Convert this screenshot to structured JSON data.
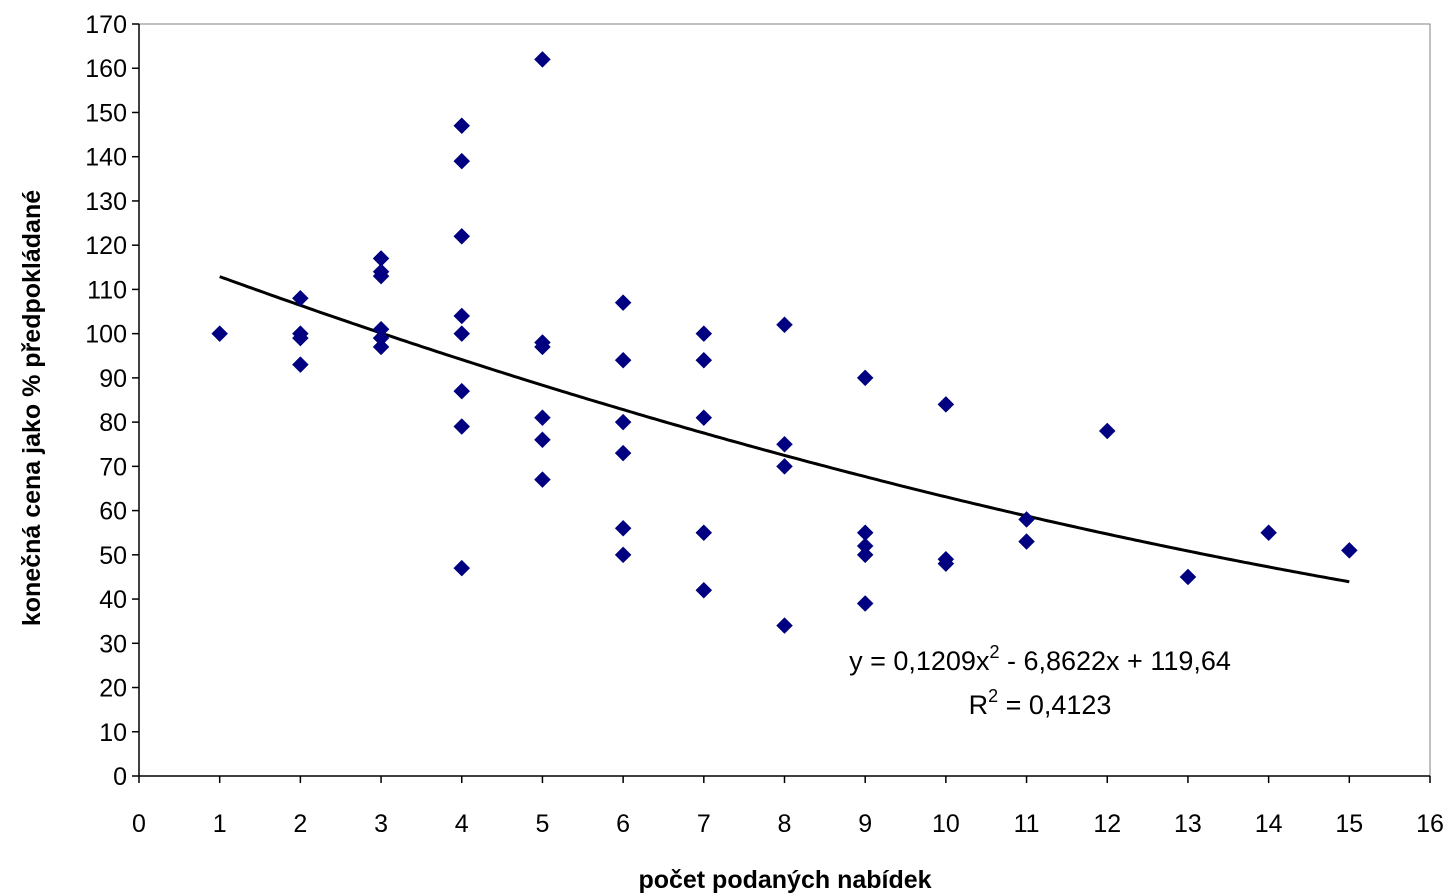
{
  "chart_data": {
    "type": "scatter",
    "title": "",
    "xlabel": "počet podaných nabídek",
    "ylabel": "konečná cena jako % předpokládané",
    "xlim": [
      0,
      16
    ],
    "ylim": [
      0,
      170
    ],
    "x_ticks": [
      "0",
      "1",
      "2",
      "3",
      "4",
      "5",
      "6",
      "7",
      "8",
      "9",
      "10",
      "11",
      "12",
      "13",
      "14",
      "15",
      "16"
    ],
    "y_ticks": [
      "0",
      "10",
      "20",
      "30",
      "40",
      "50",
      "60",
      "70",
      "80",
      "90",
      "100",
      "110",
      "120",
      "130",
      "140",
      "150",
      "160",
      "170"
    ],
    "grid": false,
    "legend": "none",
    "marker_color": "#000080",
    "trendline_color": "#000000",
    "points": [
      {
        "x": 1,
        "y": 100
      },
      {
        "x": 2,
        "y": 108
      },
      {
        "x": 2,
        "y": 100
      },
      {
        "x": 2,
        "y": 99
      },
      {
        "x": 2,
        "y": 93
      },
      {
        "x": 3,
        "y": 117
      },
      {
        "x": 3,
        "y": 114
      },
      {
        "x": 3,
        "y": 113
      },
      {
        "x": 3,
        "y": 101
      },
      {
        "x": 3,
        "y": 99
      },
      {
        "x": 3,
        "y": 97
      },
      {
        "x": 4,
        "y": 147
      },
      {
        "x": 4,
        "y": 139
      },
      {
        "x": 4,
        "y": 122
      },
      {
        "x": 4,
        "y": 104
      },
      {
        "x": 4,
        "y": 100
      },
      {
        "x": 4,
        "y": 87
      },
      {
        "x": 4,
        "y": 79
      },
      {
        "x": 4,
        "y": 47
      },
      {
        "x": 5,
        "y": 162
      },
      {
        "x": 5,
        "y": 98
      },
      {
        "x": 5,
        "y": 97
      },
      {
        "x": 5,
        "y": 81
      },
      {
        "x": 5,
        "y": 76
      },
      {
        "x": 5,
        "y": 67
      },
      {
        "x": 6,
        "y": 107
      },
      {
        "x": 6,
        "y": 94
      },
      {
        "x": 6,
        "y": 80
      },
      {
        "x": 6,
        "y": 73
      },
      {
        "x": 6,
        "y": 56
      },
      {
        "x": 6,
        "y": 50
      },
      {
        "x": 7,
        "y": 100
      },
      {
        "x": 7,
        "y": 94
      },
      {
        "x": 7,
        "y": 81
      },
      {
        "x": 7,
        "y": 55
      },
      {
        "x": 7,
        "y": 42
      },
      {
        "x": 8,
        "y": 102
      },
      {
        "x": 8,
        "y": 75
      },
      {
        "x": 8,
        "y": 70
      },
      {
        "x": 8,
        "y": 34
      },
      {
        "x": 9,
        "y": 90
      },
      {
        "x": 9,
        "y": 55
      },
      {
        "x": 9,
        "y": 52
      },
      {
        "x": 9,
        "y": 50
      },
      {
        "x": 9,
        "y": 39
      },
      {
        "x": 10,
        "y": 84
      },
      {
        "x": 10,
        "y": 49
      },
      {
        "x": 10,
        "y": 48
      },
      {
        "x": 11,
        "y": 58
      },
      {
        "x": 11,
        "y": 53
      },
      {
        "x": 12,
        "y": 78
      },
      {
        "x": 13,
        "y": 45
      },
      {
        "x": 14,
        "y": 55
      },
      {
        "x": 15,
        "y": 51
      }
    ],
    "trendline": {
      "type": "polynomial",
      "coefficients": {
        "a": 0.1209,
        "b": -6.8622,
        "c": 119.64
      },
      "x_range": [
        1,
        15
      ],
      "equation_prefix": "y = 0,1209x",
      "equation_suffix": " - 6,8622x + 119,64",
      "r2_prefix": "R",
      "r2_suffix": " = 0,4123",
      "superscript": "2"
    }
  }
}
